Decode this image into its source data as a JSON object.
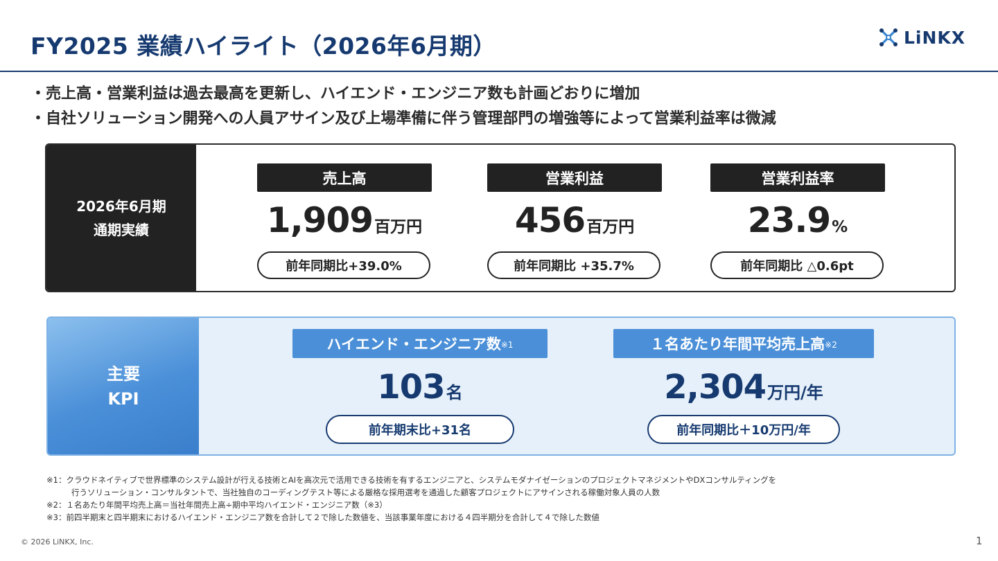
{
  "header": {
    "title": "FY2025 業績ハイライト（2026年6月期）",
    "logo_text": "LiNKX",
    "logo_icon": "linkx-mark-icon",
    "accent_color": "#163a70"
  },
  "bullets": [
    "・売上高・営業利益は過去最高を更新し、ハイエンド・エンジニア数も計画どおりに増加",
    "・自社ソリューション開発への人員アサイン及び上場準備に伴う管理部門の増強等によって営業利益率は微減"
  ],
  "results": {
    "side_line1": "2026年6月期",
    "side_line2": "通期実績",
    "metrics": [
      {
        "label": "売上高",
        "value": "1,909",
        "unit": "百万円",
        "comparison": "前年同期比+39.0%"
      },
      {
        "label": "営業利益",
        "value": "456",
        "unit": "百万円",
        "comparison": "前年同期比 +35.7%"
      },
      {
        "label": "営業利益率",
        "value": "23.9",
        "unit": "%",
        "comparison": "前年同期比 △0.6pt"
      }
    ]
  },
  "kpi": {
    "side_line1": "主要",
    "side_line2": "KPI",
    "side_color": "#4a8fd8",
    "metrics": [
      {
        "label": "ハイエンド・エンジニア数",
        "note_ref": "※1",
        "value": "103",
        "unit": "名",
        "comparison": "前年期末比+31名"
      },
      {
        "label": "１名あたり年間平均売上高",
        "note_ref": "※2",
        "value": "2,304",
        "unit": "万円/年",
        "comparison": "前年同期比＋10万円/年"
      }
    ]
  },
  "footnotes": [
    "※1：クラウドネイティブで世界標準のシステム設計が行える技術とAIを高次元で活用できる技術を有するエンジニアと、システムモダナイゼーションのプロジェクトマネジメントやDXコンサルティングを",
    "行うソリューション・コンサルタントで、当社独自のコーディングテスト等による厳格な採用選考を通過した顧客プロジェクトにアサインされる稼働対象人員の人数",
    "※2：１名あたり年間平均売上高＝当社年間売上高÷期中平均ハイエンド・エンジニア数（※3）",
    "※3：前四半期末と四半期末におけるハイエンド・エンジニア数を合計して２で除した数値を、当該事業年度における４四半期分を合計して４で除した数値"
  ],
  "footer": {
    "copyright": "© 2026 LiNKX, Inc.",
    "page_number": "1"
  }
}
